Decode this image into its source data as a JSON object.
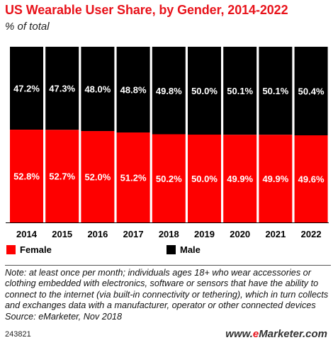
{
  "title": "US Wearable User Share, by Gender, 2014-2022",
  "subtitle": "% of total",
  "colors": {
    "female": "#fe0000",
    "male": "#000000",
    "title": "#e8131b"
  },
  "chart_data": {
    "type": "bar",
    "stacked": true,
    "categories": [
      "2014",
      "2015",
      "2016",
      "2017",
      "2018",
      "2019",
      "2020",
      "2021",
      "2022"
    ],
    "series": [
      {
        "name": "Female",
        "color": "#fe0000",
        "values": [
          52.8,
          52.7,
          52.0,
          51.2,
          50.2,
          50.0,
          49.9,
          49.9,
          49.6
        ],
        "labels": [
          "52.8%",
          "52.7%",
          "52.0%",
          "51.2%",
          "50.2%",
          "50.0%",
          "49.9%",
          "49.9%",
          "49.6%"
        ]
      },
      {
        "name": "Male",
        "color": "#000000",
        "values": [
          47.2,
          47.3,
          48.0,
          48.8,
          49.8,
          50.0,
          50.1,
          50.1,
          50.4
        ],
        "labels": [
          "47.2%",
          "47.3%",
          "48.0%",
          "48.8%",
          "49.8%",
          "50.0%",
          "50.1%",
          "50.1%",
          "50.4%"
        ]
      }
    ],
    "ylim": [
      0,
      100
    ],
    "grid": false,
    "legend_position": "bottom"
  },
  "legend": {
    "female": "Female",
    "male": "Male"
  },
  "note": "Note: at least once per month; individuals ages 18+ who wear accessories or clothing embedded with electronics, software or sensors that have the ability to connect to the internet (via built-in connectivity or tethering), which in turn collects and exchanges data with a manufacturer, operator or other connected devices",
  "source": "Source: eMarketer, Nov 2018",
  "chart_id": "243821",
  "brand": {
    "prefix": "www.",
    "e": "e",
    "rest": "Marketer",
    "suffix": ".com"
  }
}
